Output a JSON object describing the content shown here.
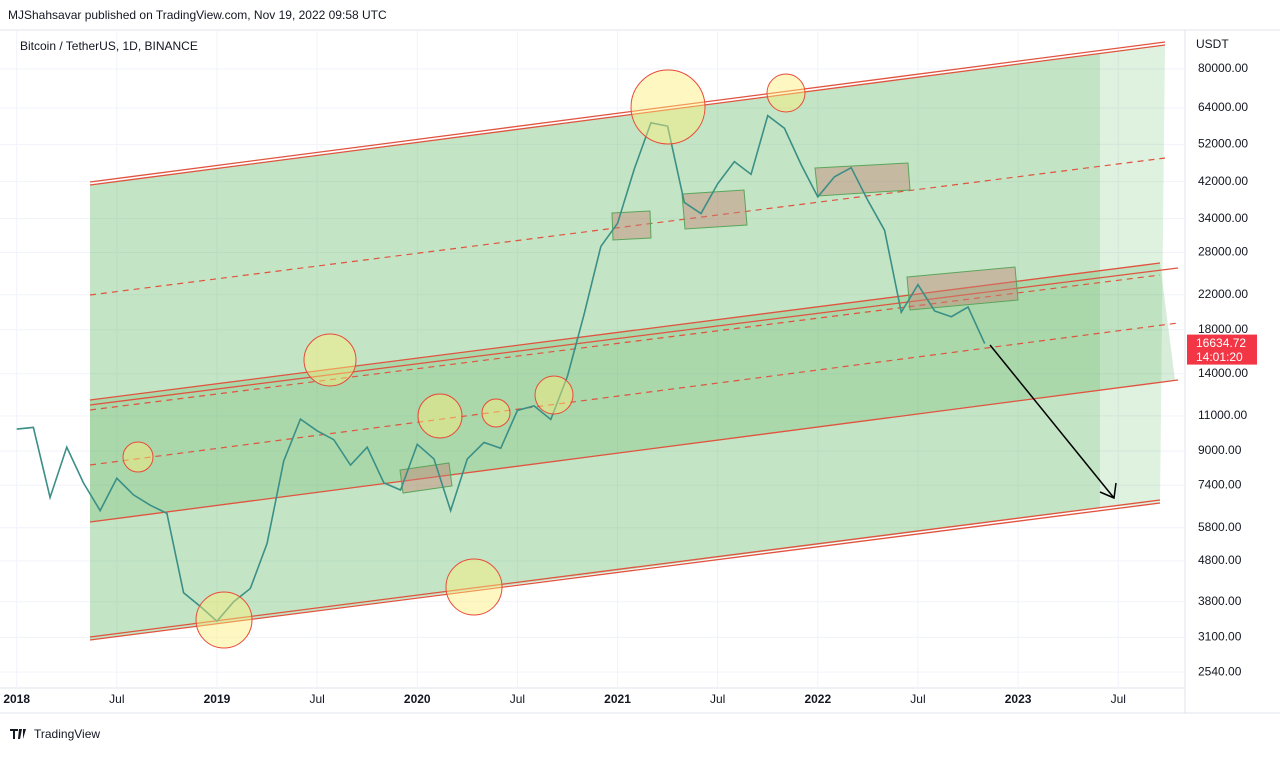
{
  "header": {
    "publisher": "MJShahsavar published on TradingView.com, Nov 19, 2022 09:58 UTC"
  },
  "footer": {
    "brand": "TradingView"
  },
  "chart_data": {
    "type": "line",
    "title": "Bitcoin / TetherUS, 1D, BINANCE",
    "y_unit": "USDT",
    "log_scale": true,
    "countdown": "14:01:20",
    "x": [
      "2018-01",
      "2018-02",
      "2018-03",
      "2018-04",
      "2018-05",
      "2018-06",
      "2018-07",
      "2018-08",
      "2018-09",
      "2018-10",
      "2018-11",
      "2018-12",
      "2019-01",
      "2019-02",
      "2019-03",
      "2019-04",
      "2019-05",
      "2019-06",
      "2019-07",
      "2019-08",
      "2019-09",
      "2019-10",
      "2019-11",
      "2019-12",
      "2020-01",
      "2020-02",
      "2020-03",
      "2020-04",
      "2020-05",
      "2020-06",
      "2020-07",
      "2020-08",
      "2020-09",
      "2020-10",
      "2020-11",
      "2020-12",
      "2021-01",
      "2021-02",
      "2021-03",
      "2021-04",
      "2021-05",
      "2021-06",
      "2021-07",
      "2021-08",
      "2021-09",
      "2021-10",
      "2021-11",
      "2021-12",
      "2022-01",
      "2022-02",
      "2022-03",
      "2022-04",
      "2022-05",
      "2022-06",
      "2022-07",
      "2022-08",
      "2022-09",
      "2022-10",
      "2022-11"
    ],
    "series": [
      {
        "name": "BTCUSDT",
        "color": "#3a8f86",
        "values": [
          10200,
          10300,
          6900,
          9200,
          7500,
          6400,
          7700,
          7000,
          6600,
          6300,
          4000,
          3700,
          3400,
          3800,
          4100,
          5300,
          8500,
          10800,
          10100,
          9600,
          8300,
          9200,
          7500,
          7200,
          9350,
          8600,
          6400,
          8600,
          9450,
          9140,
          11350,
          11650,
          10780,
          13800,
          19700,
          29000,
          33100,
          45100,
          58800,
          57700,
          37300,
          35000,
          41500,
          47100,
          43800,
          61300,
          57000,
          46300,
          38500,
          43200,
          45500,
          37700,
          31800,
          19900,
          23300,
          20050,
          19400,
          20500,
          16634.72
        ]
      }
    ],
    "xlim": [
      "2017-12",
      "2023-11"
    ],
    "xticks": [
      {
        "value": "2018-01",
        "label": "2018"
      },
      {
        "value": "2018-07",
        "label": "Jul"
      },
      {
        "value": "2019-01",
        "label": "2019"
      },
      {
        "value": "2019-07",
        "label": "Jul"
      },
      {
        "value": "2020-01",
        "label": "2020"
      },
      {
        "value": "2020-07",
        "label": "Jul"
      },
      {
        "value": "2021-01",
        "label": "2021"
      },
      {
        "value": "2021-07",
        "label": "Jul"
      },
      {
        "value": "2022-01",
        "label": "2022"
      },
      {
        "value": "2022-07",
        "label": "Jul"
      },
      {
        "value": "2023-01",
        "label": "2023"
      },
      {
        "value": "2023-07",
        "label": "Jul"
      }
    ],
    "ylim": [
      2320,
      100000
    ],
    "yticks": [
      {
        "value": 80000,
        "label": "80000.00"
      },
      {
        "value": 64000,
        "label": "64000.00"
      },
      {
        "value": 52000,
        "label": "52000.00"
      },
      {
        "value": 42000,
        "label": "42000.00"
      },
      {
        "value": 34000,
        "label": "34000.00"
      },
      {
        "value": 28000,
        "label": "28000.00"
      },
      {
        "value": 22000,
        "label": "22000.00"
      },
      {
        "value": 18000,
        "label": "18000.00"
      },
      {
        "value": 14000,
        "label": "14000.00"
      },
      {
        "value": 11000,
        "label": "11000.00"
      },
      {
        "value": 9000,
        "label": "9000.00"
      },
      {
        "value": 7400,
        "label": "7400.00"
      },
      {
        "value": 5800,
        "label": "5800.00"
      },
      {
        "value": 4800,
        "label": "4800.00"
      },
      {
        "value": 3800,
        "label": "3800.00"
      },
      {
        "value": 3100,
        "label": "3100.00"
      },
      {
        "value": 2540,
        "label": "2540.00"
      }
    ],
    "grid": true
  }
}
